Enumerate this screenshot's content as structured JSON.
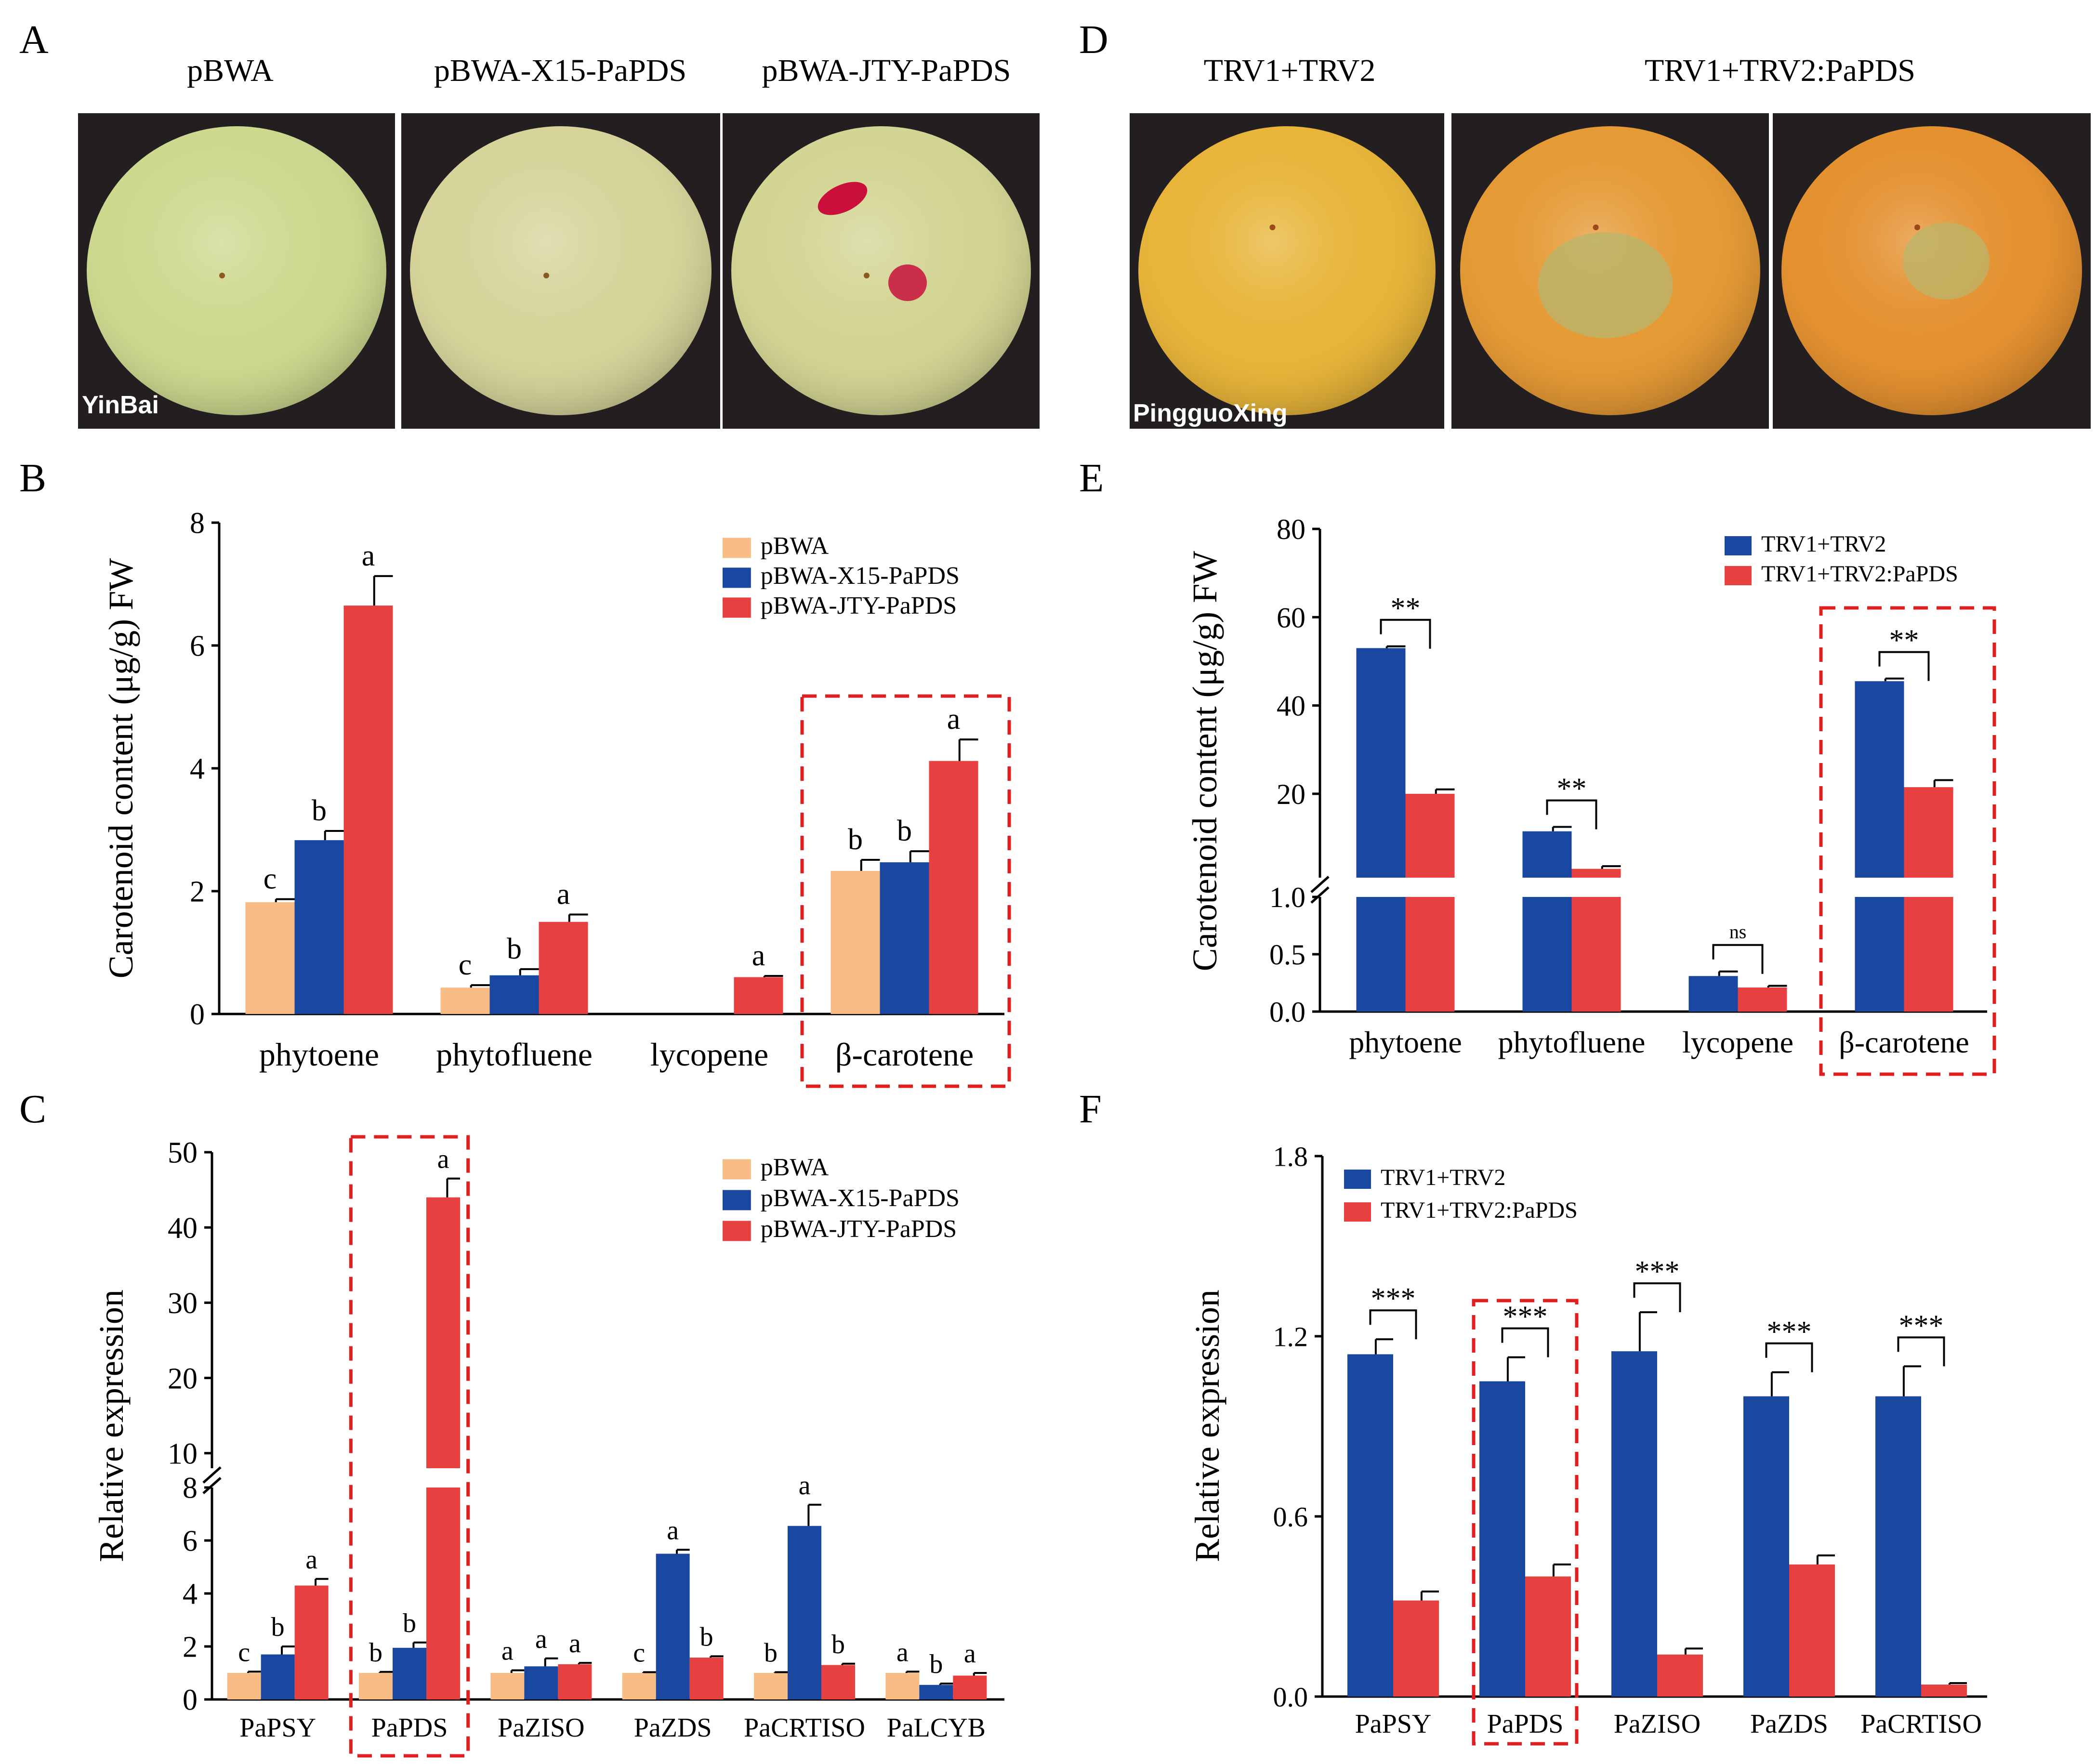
{
  "panel_letters": {
    "A": "A",
    "B": "B",
    "C": "C",
    "D": "D",
    "E": "E",
    "F": "F"
  },
  "photos_A": {
    "titles": [
      "pBWA",
      "pBWA-X15-PaPDS",
      "pBWA-JTY-PaPDS"
    ],
    "variety_label": "YinBai",
    "skin_colors": [
      "#cdd98f",
      "#d6d49a",
      "#d3d594"
    ],
    "spot_color": "#c8103a"
  },
  "photos_D": {
    "titles": [
      "TRV1+TRV2",
      "TRV1+TRV2:PaPDS"
    ],
    "variety_label": "PingguoXing",
    "skin_colors": [
      "#e8b53a",
      "#e59a35",
      "#e49130"
    ],
    "patch_color": "#b9b56a"
  },
  "colors": {
    "pbwa": "#f7bd84",
    "x15": "#1a47a0",
    "jty": "#e64140",
    "trv": "#1a47a0",
    "trvpds": "#e64140",
    "highlight": "#e02020"
  },
  "chart_data": [
    {
      "panel": "B",
      "type": "bar",
      "ylabel": "Carotenoid content (μg/g) FW",
      "ylim": [
        0,
        8
      ],
      "yticks": [
        "0",
        "2",
        "4",
        "6",
        "8"
      ],
      "categories": [
        "phytoene",
        "phytofluene",
        "lycopene",
        "β-carotene"
      ],
      "series": [
        {
          "name": "pBWA",
          "values": [
            1.82,
            0.43,
            0.0,
            2.33
          ],
          "errors": [
            0.05,
            0.04,
            0.0,
            0.18
          ],
          "letters": [
            "c",
            "c",
            "",
            "b"
          ]
        },
        {
          "name": "pBWA-X15-PaPDS",
          "values": [
            2.83,
            0.63,
            0.0,
            2.47
          ],
          "errors": [
            0.15,
            0.1,
            0.0,
            0.18
          ],
          "letters": [
            "b",
            "b",
            "",
            "b"
          ]
        },
        {
          "name": "pBWA-JTY-PaPDS",
          "values": [
            6.65,
            1.5,
            0.6,
            4.12
          ],
          "errors": [
            0.48,
            0.12,
            0.02,
            0.35
          ],
          "letters": [
            "a",
            "a",
            "a",
            "a"
          ]
        }
      ],
      "highlight": "β-carotene",
      "legend": "top-right"
    },
    {
      "panel": "C",
      "type": "bar",
      "ylabel": "Relative expression",
      "axis_break": {
        "lower": [
          0,
          8
        ],
        "upper": [
          8,
          50
        ]
      },
      "yticks_lower": [
        "0",
        "2",
        "4",
        "6",
        "8"
      ],
      "yticks_upper": [
        "10",
        "20",
        "30",
        "40",
        "50"
      ],
      "categories": [
        "PaPSY",
        "PaPDS",
        "PaZISO",
        "PaZDS",
        "PaCRTISO",
        "PaLCYB"
      ],
      "series": [
        {
          "name": "pBWA",
          "values": [
            1.0,
            1.0,
            1.0,
            1.0,
            1.0,
            1.0
          ],
          "errors": [
            0.05,
            0.04,
            0.1,
            0.03,
            0.03,
            0.05
          ],
          "letters": [
            "c",
            "b",
            "a",
            "c",
            "b",
            "a"
          ]
        },
        {
          "name": "pBWA-X15-PaPDS",
          "values": [
            1.7,
            1.95,
            1.25,
            5.5,
            6.55,
            0.55
          ],
          "errors": [
            0.3,
            0.2,
            0.3,
            0.15,
            0.8,
            0.05
          ],
          "letters": [
            "b",
            "b",
            "a",
            "a",
            "a",
            "b"
          ]
        },
        {
          "name": "pBWA-JTY-PaPDS",
          "values": [
            4.3,
            44.0,
            1.33,
            1.58,
            1.3,
            0.9
          ],
          "errors": [
            0.25,
            2.5,
            0.05,
            0.05,
            0.05,
            0.1
          ],
          "letters": [
            "a",
            "a",
            "a",
            "b",
            "b",
            "a"
          ]
        }
      ],
      "highlight": "PaPDS",
      "legend": "top-right"
    },
    {
      "panel": "E",
      "type": "bar",
      "ylabel": "Carotenoid content (μg/g) FW",
      "axis_break": {
        "lower": [
          0,
          1.0
        ],
        "upper": [
          1.0,
          80
        ]
      },
      "yticks_lower": [
        "0.0",
        "0.5",
        "1.0"
      ],
      "yticks_upper": [
        "20",
        "40",
        "60",
        "80"
      ],
      "categories": [
        "phytoene",
        "phytofluene",
        "lycopene",
        "β-carotene"
      ],
      "series": [
        {
          "name": "TRV1+TRV2",
          "values": [
            53.0,
            11.5,
            0.31,
            45.5
          ],
          "errors": [
            0.4,
            1.0,
            0.04,
            0.6
          ]
        },
        {
          "name": "TRV1+TRV2:PaPDS",
          "values": [
            20.0,
            3.0,
            0.21,
            21.5
          ],
          "errors": [
            1.0,
            0.6,
            0.015,
            1.6
          ]
        }
      ],
      "significance": [
        "**",
        "**",
        "ns",
        "**"
      ],
      "highlight": "β-carotene",
      "legend": "top-right"
    },
    {
      "panel": "F",
      "type": "bar",
      "ylabel": "Relative expression",
      "ylim": [
        0,
        1.8
      ],
      "yticks": [
        "0.0",
        "0.6",
        "1.2",
        "1.8"
      ],
      "categories": [
        "PaPSY",
        "PaPDS",
        "PaZISO",
        "PaZDS",
        "PaCRTISO"
      ],
      "series": [
        {
          "name": "TRV1+TRV2",
          "values": [
            1.14,
            1.05,
            1.15,
            1.0,
            1.0
          ],
          "errors": [
            0.05,
            0.08,
            0.13,
            0.08,
            0.1
          ]
        },
        {
          "name": "TRV1+TRV2:PaPDS",
          "values": [
            0.32,
            0.4,
            0.14,
            0.44,
            0.04
          ],
          "errors": [
            0.03,
            0.04,
            0.02,
            0.03,
            0.005
          ]
        }
      ],
      "significance": [
        "***",
        "***",
        "***",
        "***",
        "***"
      ],
      "highlight": "PaPDS",
      "legend": "top-left"
    }
  ]
}
